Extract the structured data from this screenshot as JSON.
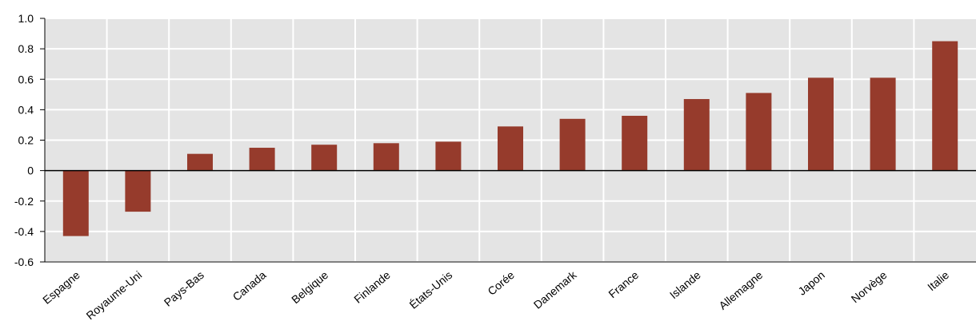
{
  "chart_data": {
    "type": "bar",
    "categories": [
      "Espagne",
      "Royaume-Uni",
      "Pays-Bas",
      "Canada",
      "Belgique",
      "Finlande",
      "États-Unis",
      "Corée",
      "Danemark",
      "France",
      "Islande",
      "Allemagne",
      "Japon",
      "Norvège",
      "Italie"
    ],
    "values": [
      -0.43,
      -0.27,
      0.11,
      0.15,
      0.17,
      0.18,
      0.19,
      0.29,
      0.34,
      0.36,
      0.47,
      0.51,
      0.61,
      0.61,
      0.85
    ],
    "title": "",
    "xlabel": "",
    "ylabel": "",
    "ylim": [
      -0.6,
      1.0
    ],
    "yticks": [
      "1.0",
      "0.8",
      "0.6",
      "0.4",
      "0.2",
      "0",
      "-0.2",
      "-0.4",
      "-0.6"
    ],
    "ytick_values": [
      1.0,
      0.8,
      0.6,
      0.4,
      0.2,
      0,
      -0.2,
      -0.4,
      -0.6
    ],
    "grid": true,
    "colors": {
      "bar": "#963b2c",
      "plot_background": "#e4e4e4",
      "grid": "#ffffff",
      "axis": "#000000"
    }
  }
}
